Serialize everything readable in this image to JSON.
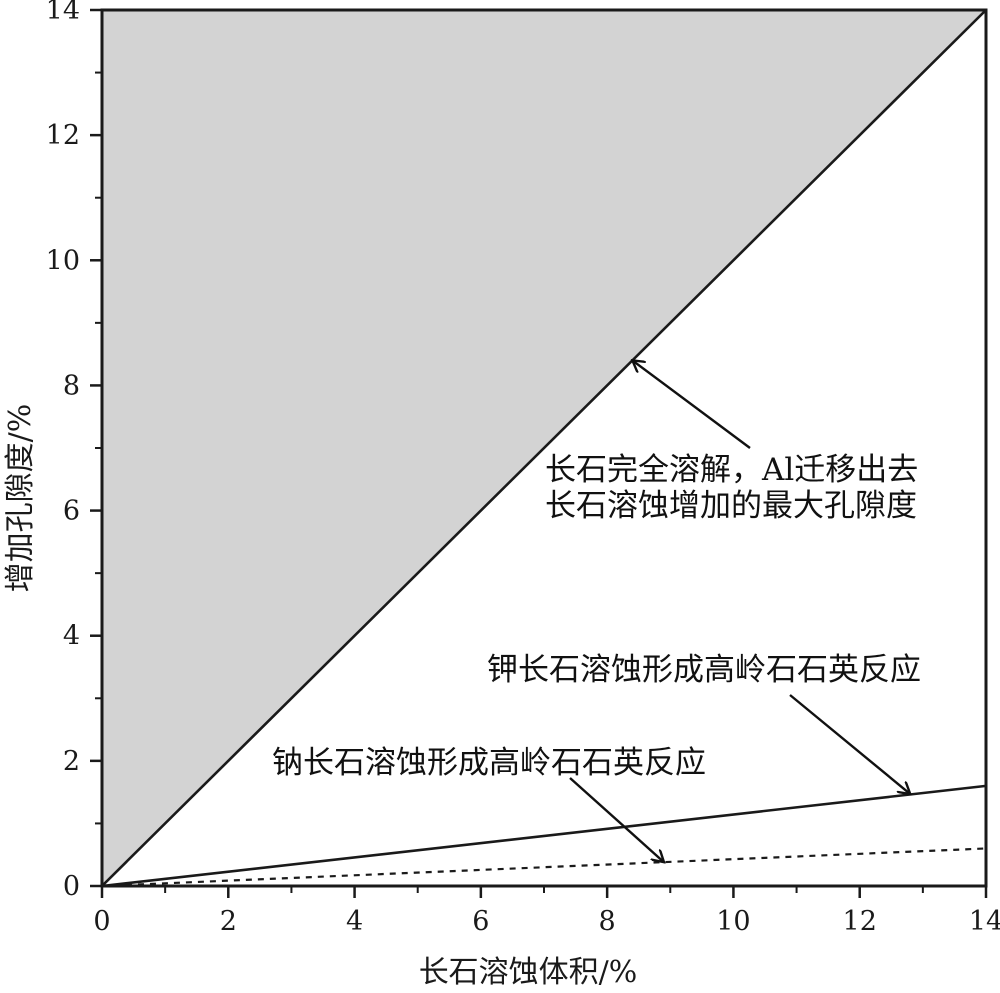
{
  "chart_data": {
    "type": "line",
    "xlabel": "长石溶蚀体积/%",
    "ylabel": "增加孔隙度/%",
    "xlim": [
      0,
      14
    ],
    "ylim": [
      0,
      14
    ],
    "x_ticks": [
      0,
      2,
      4,
      6,
      8,
      10,
      12,
      14
    ],
    "y_ticks": [
      0,
      2,
      4,
      6,
      8,
      10,
      12,
      14
    ],
    "grid": false,
    "series": [
      {
        "name": "长石完全溶解，Al迁移出去长石溶蚀增加的最大孔隙度",
        "x": [
          0,
          14
        ],
        "y": [
          0,
          14
        ],
        "style": "solid",
        "color": "#1a1a1a"
      },
      {
        "name": "钾长石溶蚀形成高岭石石英反应",
        "x": [
          0,
          14
        ],
        "y": [
          0,
          1.6
        ],
        "style": "solid",
        "color": "#1a1a1a"
      },
      {
        "name": "钠长石溶蚀形成高岭石石英反应",
        "x": [
          0,
          14
        ],
        "y": [
          0,
          0.6
        ],
        "style": "dashed",
        "color": "#1a1a1a"
      }
    ],
    "shaded_region": {
      "description": "area above y = x",
      "color": "#d3d3d3"
    },
    "annotations": [
      {
        "lines": [
          "长石完全溶解，Al迁移出去",
          "长石溶蚀增加的最大孔隙度"
        ],
        "points_to": [
          8.4,
          8.4
        ]
      },
      {
        "lines": [
          "钾长石溶蚀形成高岭石石英反应"
        ],
        "points_to": [
          12.8,
          1.47
        ]
      },
      {
        "lines": [
          "钠长石溶蚀形成高岭石石英反应"
        ],
        "points_to": [
          8.9,
          0.38
        ]
      }
    ]
  }
}
